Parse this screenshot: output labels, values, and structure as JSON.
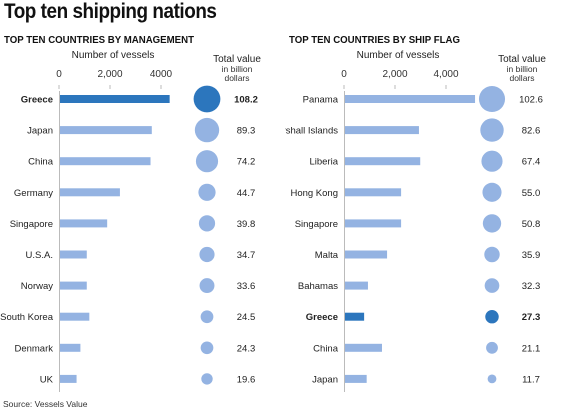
{
  "title": "Top ten shipping nations",
  "source": "Source: Vessels Value",
  "colors": {
    "bar": "#94b3e2",
    "highlight": "#2c76bd",
    "circle": "#94b3e2",
    "axis": "#bbbbbb"
  },
  "chart_data": [
    {
      "type": "bar",
      "title": "TOP TEN COUNTRIES BY MANAGEMENT",
      "xlabel": "Number of vessels",
      "xticks": [
        "0",
        "2,000",
        "4000"
      ],
      "xlim": [
        0,
        4000
      ],
      "value_label_line1": "Total value",
      "value_label_line2": "in billion",
      "value_label_line3": "dollars",
      "highlight": "Greece",
      "categories": [
        "Greece",
        "Japan",
        "China",
        "Germany",
        "Singapore",
        "U.S.A.",
        "Norway",
        "South Korea",
        "Denmark",
        "UK"
      ],
      "vessels": [
        4300,
        3600,
        3550,
        2350,
        1850,
        1050,
        1050,
        1150,
        800,
        650
      ],
      "values": [
        "108.2",
        "89.3",
        "74.2",
        "44.7",
        "39.8",
        "34.7",
        "33.6",
        "24.5",
        "24.3",
        "19.6"
      ]
    },
    {
      "type": "bar",
      "title": "TOP TEN COUNTRIES BY SHIP FLAG",
      "xlabel": "Number of vessels",
      "xticks": [
        "0",
        "2,000",
        "4,000"
      ],
      "xlim": [
        0,
        4000
      ],
      "value_label_line1": "Total value",
      "value_label_line2": "in billion",
      "value_label_line3": "dollars",
      "highlight": "Greece",
      "categories": [
        "Panama",
        "Marshall Islands",
        "Liberia",
        "Hong Kong",
        "Singapore",
        "Malta",
        "Bahamas",
        "Greece",
        "China",
        "Japan"
      ],
      "vessels": [
        5100,
        2900,
        2950,
        2200,
        2200,
        1650,
        900,
        750,
        1450,
        850
      ],
      "values": [
        "102.6",
        "82.6",
        "67.4",
        "55.0",
        "50.8",
        "35.9",
        "32.3",
        "27.3",
        "21.1",
        "11.7"
      ]
    }
  ]
}
